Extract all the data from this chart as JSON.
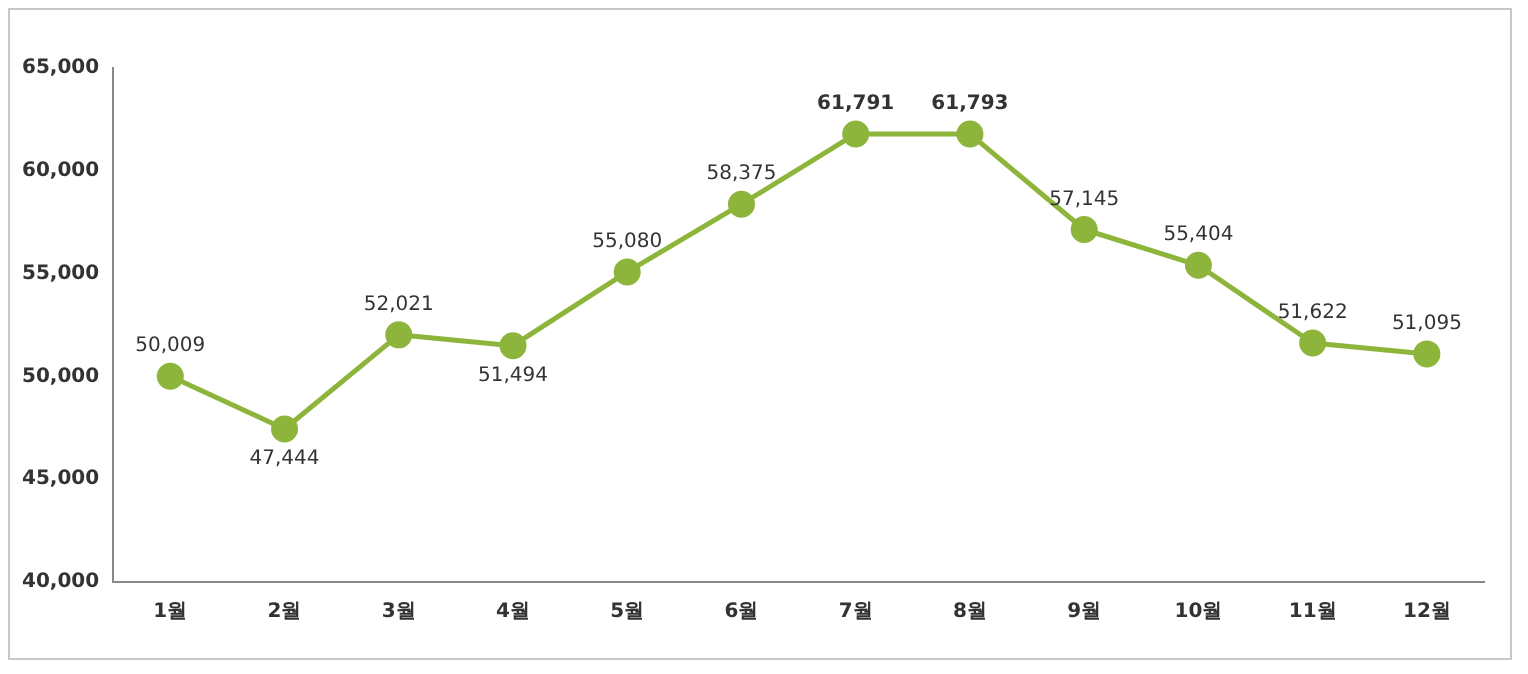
{
  "chart_data": {
    "type": "line",
    "categories": [
      "1월",
      "2월",
      "3월",
      "4월",
      "5월",
      "6월",
      "7월",
      "8월",
      "9월",
      "10월",
      "11월",
      "12월"
    ],
    "series": [
      {
        "color": "#8db53c",
        "values": [
          50009,
          47444,
          52021,
          51494,
          55080,
          58375,
          61791,
          61793,
          57145,
          55404,
          51622,
          51095
        ],
        "value_labels": [
          "50,009",
          "47,444",
          "52,021",
          "51,494",
          "55,080",
          "58,375",
          "61,791",
          "61,793",
          "57,145",
          "55,404",
          "51,622",
          "51,095"
        ]
      }
    ],
    "ylim": [
      40000,
      65000
    ],
    "yticks": [
      {
        "value": 40000,
        "label": "40,000"
      },
      {
        "value": 45000,
        "label": "45,000"
      },
      {
        "value": 50000,
        "label": "50,000"
      },
      {
        "value": 55000,
        "label": "55,000"
      },
      {
        "value": 60000,
        "label": "60,000"
      },
      {
        "value": 65000,
        "label": "65,000"
      }
    ],
    "grid": false,
    "legend": false,
    "marker": "circle",
    "line_style": "solid"
  }
}
